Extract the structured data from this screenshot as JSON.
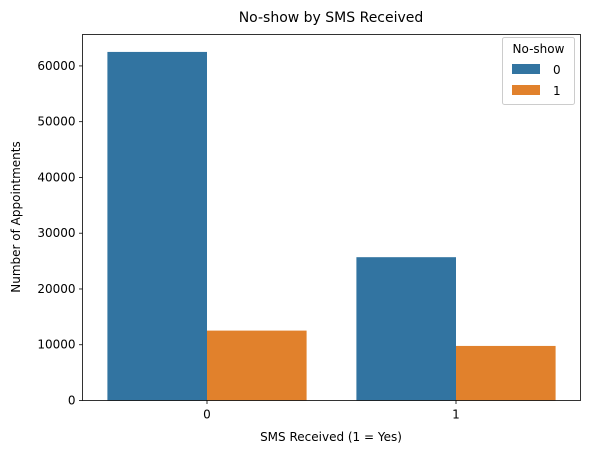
{
  "chart_data": {
    "type": "bar",
    "title": "No-show by SMS Received",
    "xlabel": "SMS Received (1 = Yes)",
    "ylabel": "Number of Appointments",
    "categories": [
      "0",
      "1"
    ],
    "series": [
      {
        "name": "0",
        "values": [
          62510,
          25700
        ],
        "color": "#3274a1"
      },
      {
        "name": "1",
        "values": [
          12535,
          9785
        ],
        "color": "#e1812c"
      }
    ],
    "ylim": [
      0,
      65635
    ],
    "yticks": [
      0,
      10000,
      20000,
      30000,
      40000,
      50000,
      60000
    ],
    "ytick_labels": [
      "0",
      "10000",
      "20000",
      "30000",
      "40000",
      "50000",
      "60000"
    ],
    "legend": {
      "title": "No-show",
      "placement": "top-right"
    },
    "grid": false
  }
}
